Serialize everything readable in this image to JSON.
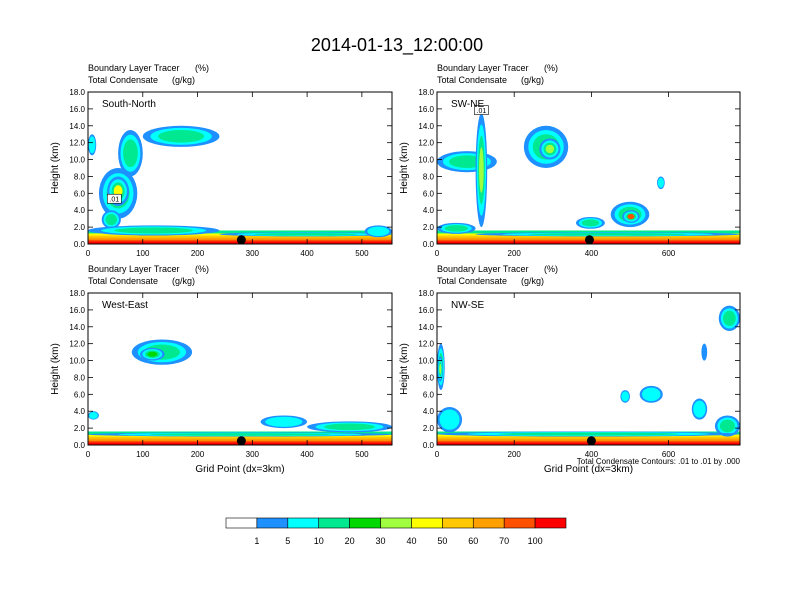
{
  "figure_title": "2014-01-13_12:00:00",
  "footnote": "Total Condensate Contours: .01 to .01 by .000",
  "colors": {
    "levels": [
      "#ffffff",
      "#1e90ff",
      "#00ffff",
      "#00e890",
      "#00d800",
      "#a0ff40",
      "#ffff00",
      "#ffc800",
      "#ffa000",
      "#ff5000",
      "#ff0000"
    ],
    "contour": "#000000",
    "marker": "#000000"
  },
  "colorbar": {
    "labels": [
      "1",
      "5",
      "10",
      "20",
      "30",
      "40",
      "50",
      "60",
      "70",
      "100"
    ]
  },
  "chart_data": [
    {
      "type": "heatmap",
      "title": "South-North",
      "subtitle_left_1": "Boundary Layer Tracer",
      "subtitle_unit_1": "(%)",
      "subtitle_left_2": "Total Condensate",
      "subtitle_unit_2": "(g/kg)",
      "xlabel": "",
      "ylabel": "Height (km)",
      "xlim": [
        0,
        555
      ],
      "ylim": [
        0,
        18
      ],
      "xticks": [
        0,
        100,
        200,
        300,
        400,
        500
      ],
      "xtick_labels": [
        "0",
        "100",
        "200",
        "300",
        "400",
        "500"
      ],
      "yticks": [
        0,
        2,
        4,
        6,
        8,
        10,
        12,
        14,
        16,
        18
      ],
      "ytick_labels": [
        "0.0",
        "2.0",
        "4.0",
        "6.0",
        "8.0",
        "10.0",
        "12.0",
        "14.0",
        "16.0",
        "18.0"
      ],
      "marker_x": 280,
      "contour_label": ".01",
      "contour_label_x": 48,
      "contour_label_y": 5.3,
      "blobs": [
        {
          "x": [
            100,
            240
          ],
          "y": [
            11.5,
            14.0
          ],
          "level": 3
        },
        {
          "x": [
            0,
            15
          ],
          "y": [
            10.5,
            13.0
          ],
          "level": 2
        },
        {
          "x": [
            20,
            90
          ],
          "y": [
            3.0,
            9.0
          ],
          "level": 5
        },
        {
          "x": [
            35,
            75
          ],
          "y": [
            4.5,
            8.0
          ],
          "level": 6
        },
        {
          "x": [
            55,
            100
          ],
          "y": [
            8.0,
            13.5
          ],
          "level": 3
        },
        {
          "x": [
            25,
            60
          ],
          "y": [
            1.8,
            4.0
          ],
          "level": 3
        },
        {
          "x": [
            0,
            240
          ],
          "y": [
            1.0,
            2.2
          ],
          "level": 3
        },
        {
          "x": [
            240,
            555
          ],
          "y": [
            0.9,
            1.4
          ],
          "level": 3
        },
        {
          "x": [
            505,
            555
          ],
          "y": [
            0.8,
            2.2
          ],
          "level": 2
        }
      ]
    },
    {
      "type": "heatmap",
      "title": "SW-NE",
      "subtitle_left_1": "Boundary Layer Tracer",
      "subtitle_unit_1": "(%)",
      "subtitle_left_2": "Total Condensate",
      "subtitle_unit_2": "(g/kg)",
      "xlabel": "",
      "ylabel": "Height (km)",
      "xlim": [
        0,
        785
      ],
      "ylim": [
        0,
        18
      ],
      "xticks": [
        0,
        200,
        400,
        600
      ],
      "xtick_labels": [
        "0",
        "200",
        "400",
        "600"
      ],
      "yticks": [
        0,
        2,
        4,
        6,
        8,
        10,
        12,
        14,
        16,
        18
      ],
      "ytick_labels": [
        "0.0",
        "2.0",
        "4.0",
        "6.0",
        "8.0",
        "10.0",
        "12.0",
        "14.0",
        "16.0",
        "18.0"
      ],
      "marker_x": 395,
      "contour_label": ".01",
      "contour_label_x": 115,
      "contour_label_y": 15.8,
      "blobs": [
        {
          "x": [
            0,
            155
          ],
          "y": [
            8.5,
            11.0
          ],
          "level": 3
        },
        {
          "x": [
            225,
            340
          ],
          "y": [
            9.0,
            14.0
          ],
          "level": 3
        },
        {
          "x": [
            265,
            320
          ],
          "y": [
            10.0,
            12.5
          ],
          "level": 5
        },
        {
          "x": [
            100,
            130
          ],
          "y": [
            2.0,
            15.5
          ],
          "level": 5
        },
        {
          "x": [
            360,
            435
          ],
          "y": [
            1.8,
            3.2
          ],
          "level": 3
        },
        {
          "x": [
            450,
            550
          ],
          "y": [
            2.0,
            5.0
          ],
          "level": 3
        },
        {
          "x": [
            480,
            525
          ],
          "y": [
            2.5,
            4.0
          ],
          "level": 9
        },
        {
          "x": [
            570,
            590
          ],
          "y": [
            6.5,
            8.0
          ],
          "level": 2
        },
        {
          "x": [
            0,
            100
          ],
          "y": [
            1.2,
            2.5
          ],
          "level": 3
        },
        {
          "x": [
            100,
            785
          ],
          "y": [
            0.9,
            1.4
          ],
          "level": 3
        }
      ]
    },
    {
      "type": "heatmap",
      "title": "West-East",
      "subtitle_left_1": "Boundary Layer Tracer",
      "subtitle_unit_1": "(%)",
      "subtitle_left_2": "Total Condensate",
      "subtitle_unit_2": "(g/kg)",
      "xlabel": "Grid Point (dx=3km)",
      "ylabel": "Height (km)",
      "xlim": [
        0,
        555
      ],
      "ylim": [
        0,
        18
      ],
      "xticks": [
        0,
        100,
        200,
        300,
        400,
        500
      ],
      "xtick_labels": [
        "0",
        "100",
        "200",
        "300",
        "400",
        "500"
      ],
      "yticks": [
        0,
        2,
        4,
        6,
        8,
        10,
        12,
        14,
        16,
        18
      ],
      "ytick_labels": [
        "0.0",
        "2.0",
        "4.0",
        "6.0",
        "8.0",
        "10.0",
        "12.0",
        "14.0",
        "16.0",
        "18.0"
      ],
      "marker_x": 280,
      "contour_label": "",
      "contour_label_x": 0,
      "contour_label_y": 0,
      "blobs": [
        {
          "x": [
            80,
            190
          ],
          "y": [
            9.5,
            12.5
          ],
          "level": 3
        },
        {
          "x": [
            95,
            140
          ],
          "y": [
            10.0,
            11.5
          ],
          "level": 4
        },
        {
          "x": [
            0,
            20
          ],
          "y": [
            3.0,
            4.0
          ],
          "level": 2
        },
        {
          "x": [
            315,
            400
          ],
          "y": [
            2.0,
            3.5
          ],
          "level": 2
        },
        {
          "x": [
            400,
            555
          ],
          "y": [
            1.5,
            2.8
          ],
          "level": 3
        },
        {
          "x": [
            0,
            555
          ],
          "y": [
            1.0,
            1.5
          ],
          "level": 3
        }
      ]
    },
    {
      "type": "heatmap",
      "title": "NW-SE",
      "subtitle_left_1": "Boundary Layer Tracer",
      "subtitle_unit_1": "(%)",
      "subtitle_left_2": "Total Condensate",
      "subtitle_unit_2": "(g/kg)",
      "xlabel": "Grid Point (dx=3km)",
      "ylabel": "Height (km)",
      "xlim": [
        0,
        785
      ],
      "ylim": [
        0,
        18
      ],
      "xticks": [
        0,
        200,
        400,
        600
      ],
      "xtick_labels": [
        "0",
        "200",
        "400",
        "600"
      ],
      "yticks": [
        0,
        2,
        4,
        6,
        8,
        10,
        12,
        14,
        16,
        18
      ],
      "ytick_labels": [
        "0.0",
        "2.0",
        "4.0",
        "6.0",
        "8.0",
        "10.0",
        "12.0",
        "14.0",
        "16.0",
        "18.0"
      ],
      "marker_x": 400,
      "contour_label": "",
      "contour_label_x": 0,
      "contour_label_y": 0,
      "blobs": [
        {
          "x": [
            0,
            20
          ],
          "y": [
            6.5,
            12.0
          ],
          "level": 3
        },
        {
          "x": [
            2,
            15
          ],
          "y": [
            7.5,
            10.5
          ],
          "level": 5
        },
        {
          "x": [
            0,
            65
          ],
          "y": [
            1.5,
            4.5
          ],
          "level": 2
        },
        {
          "x": [
            475,
            500
          ],
          "y": [
            5.0,
            6.5
          ],
          "level": 2
        },
        {
          "x": [
            525,
            585
          ],
          "y": [
            5.0,
            7.0
          ],
          "level": 2
        },
        {
          "x": [
            730,
            785
          ],
          "y": [
            13.5,
            16.5
          ],
          "level": 3
        },
        {
          "x": [
            660,
            700
          ],
          "y": [
            3.0,
            5.5
          ],
          "level": 2
        },
        {
          "x": [
            685,
            700
          ],
          "y": [
            10.0,
            12.0
          ],
          "level": 1
        },
        {
          "x": [
            720,
            785
          ],
          "y": [
            1.0,
            3.5
          ],
          "level": 3
        },
        {
          "x": [
            0,
            785
          ],
          "y": [
            1.0,
            1.6
          ],
          "level": 3
        }
      ]
    }
  ]
}
